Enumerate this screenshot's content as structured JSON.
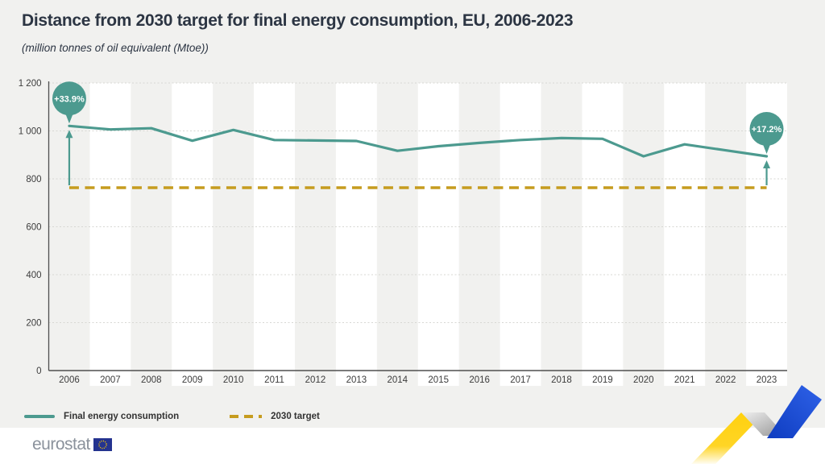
{
  "header": {
    "title": "Distance from 2030 target for final energy consumption, EU, 2006-2023",
    "subtitle": "(million tonnes of oil equivalent (Mtoe))"
  },
  "chart_data": {
    "type": "line",
    "categories": [
      "2006",
      "2007",
      "2008",
      "2009",
      "2010",
      "2011",
      "2012",
      "2013",
      "2014",
      "2015",
      "2016",
      "2017",
      "2018",
      "2019",
      "2020",
      "2021",
      "2022",
      "2023"
    ],
    "series": [
      {
        "name": "Final energy consumption",
        "style": "solid",
        "color": "#4c9a8f",
        "values": [
          1021,
          1006,
          1011,
          959,
          1004,
          962,
          960,
          958,
          917,
          936,
          950,
          962,
          970,
          967,
          894,
          944,
          919,
          894
        ]
      },
      {
        "name": "2030 target",
        "style": "dashed",
        "color": "#c69c1f",
        "constant": 763
      }
    ],
    "title": "Distance from 2030 target for final energy consumption, EU, 2006-2023",
    "xlabel": "",
    "ylabel": "",
    "unit": "million tonnes of oil equivalent (Mtoe)",
    "ylim": [
      0,
      1200
    ],
    "ytick_values": [
      0,
      200,
      400,
      600,
      800,
      1000,
      1200
    ],
    "ytick_labels": [
      "0",
      "200",
      "400",
      "600",
      "800",
      "1 000",
      "1 200"
    ],
    "grid": "horizontal-dotted",
    "background_bands": "alternating vertical year bands",
    "legend_position": "bottom-left",
    "annotations": [
      {
        "category": "2006",
        "label": "+33.9%"
      },
      {
        "category": "2023",
        "label": "+17.2%"
      }
    ]
  },
  "legend": {
    "items": [
      {
        "label": "Final energy consumption",
        "swatch": "solid-line",
        "color": "#4c9a8f"
      },
      {
        "label": "2030 target",
        "swatch": "dashed-line",
        "color": "#c69c1f"
      }
    ]
  },
  "footer": {
    "logo_text": "eurostat"
  },
  "colors": {
    "background": "#f1f1ef",
    "band_white": "#ffffff",
    "series_teal": "#4c9a8f",
    "target_gold": "#c69c1f",
    "title_text": "#2c3543",
    "axis_text": "#3d3d3d",
    "axis_line": "#4f4f4f",
    "gridline": "#d7d7d3",
    "bubble_text": "#ffffff",
    "ribbon_yellow": "#ffd20a",
    "ribbon_blue": "#1c4fd6",
    "eu_flag_blue": "#24338f",
    "eu_flag_stars": "#ffcc00",
    "logo_text": "#8b929c"
  }
}
